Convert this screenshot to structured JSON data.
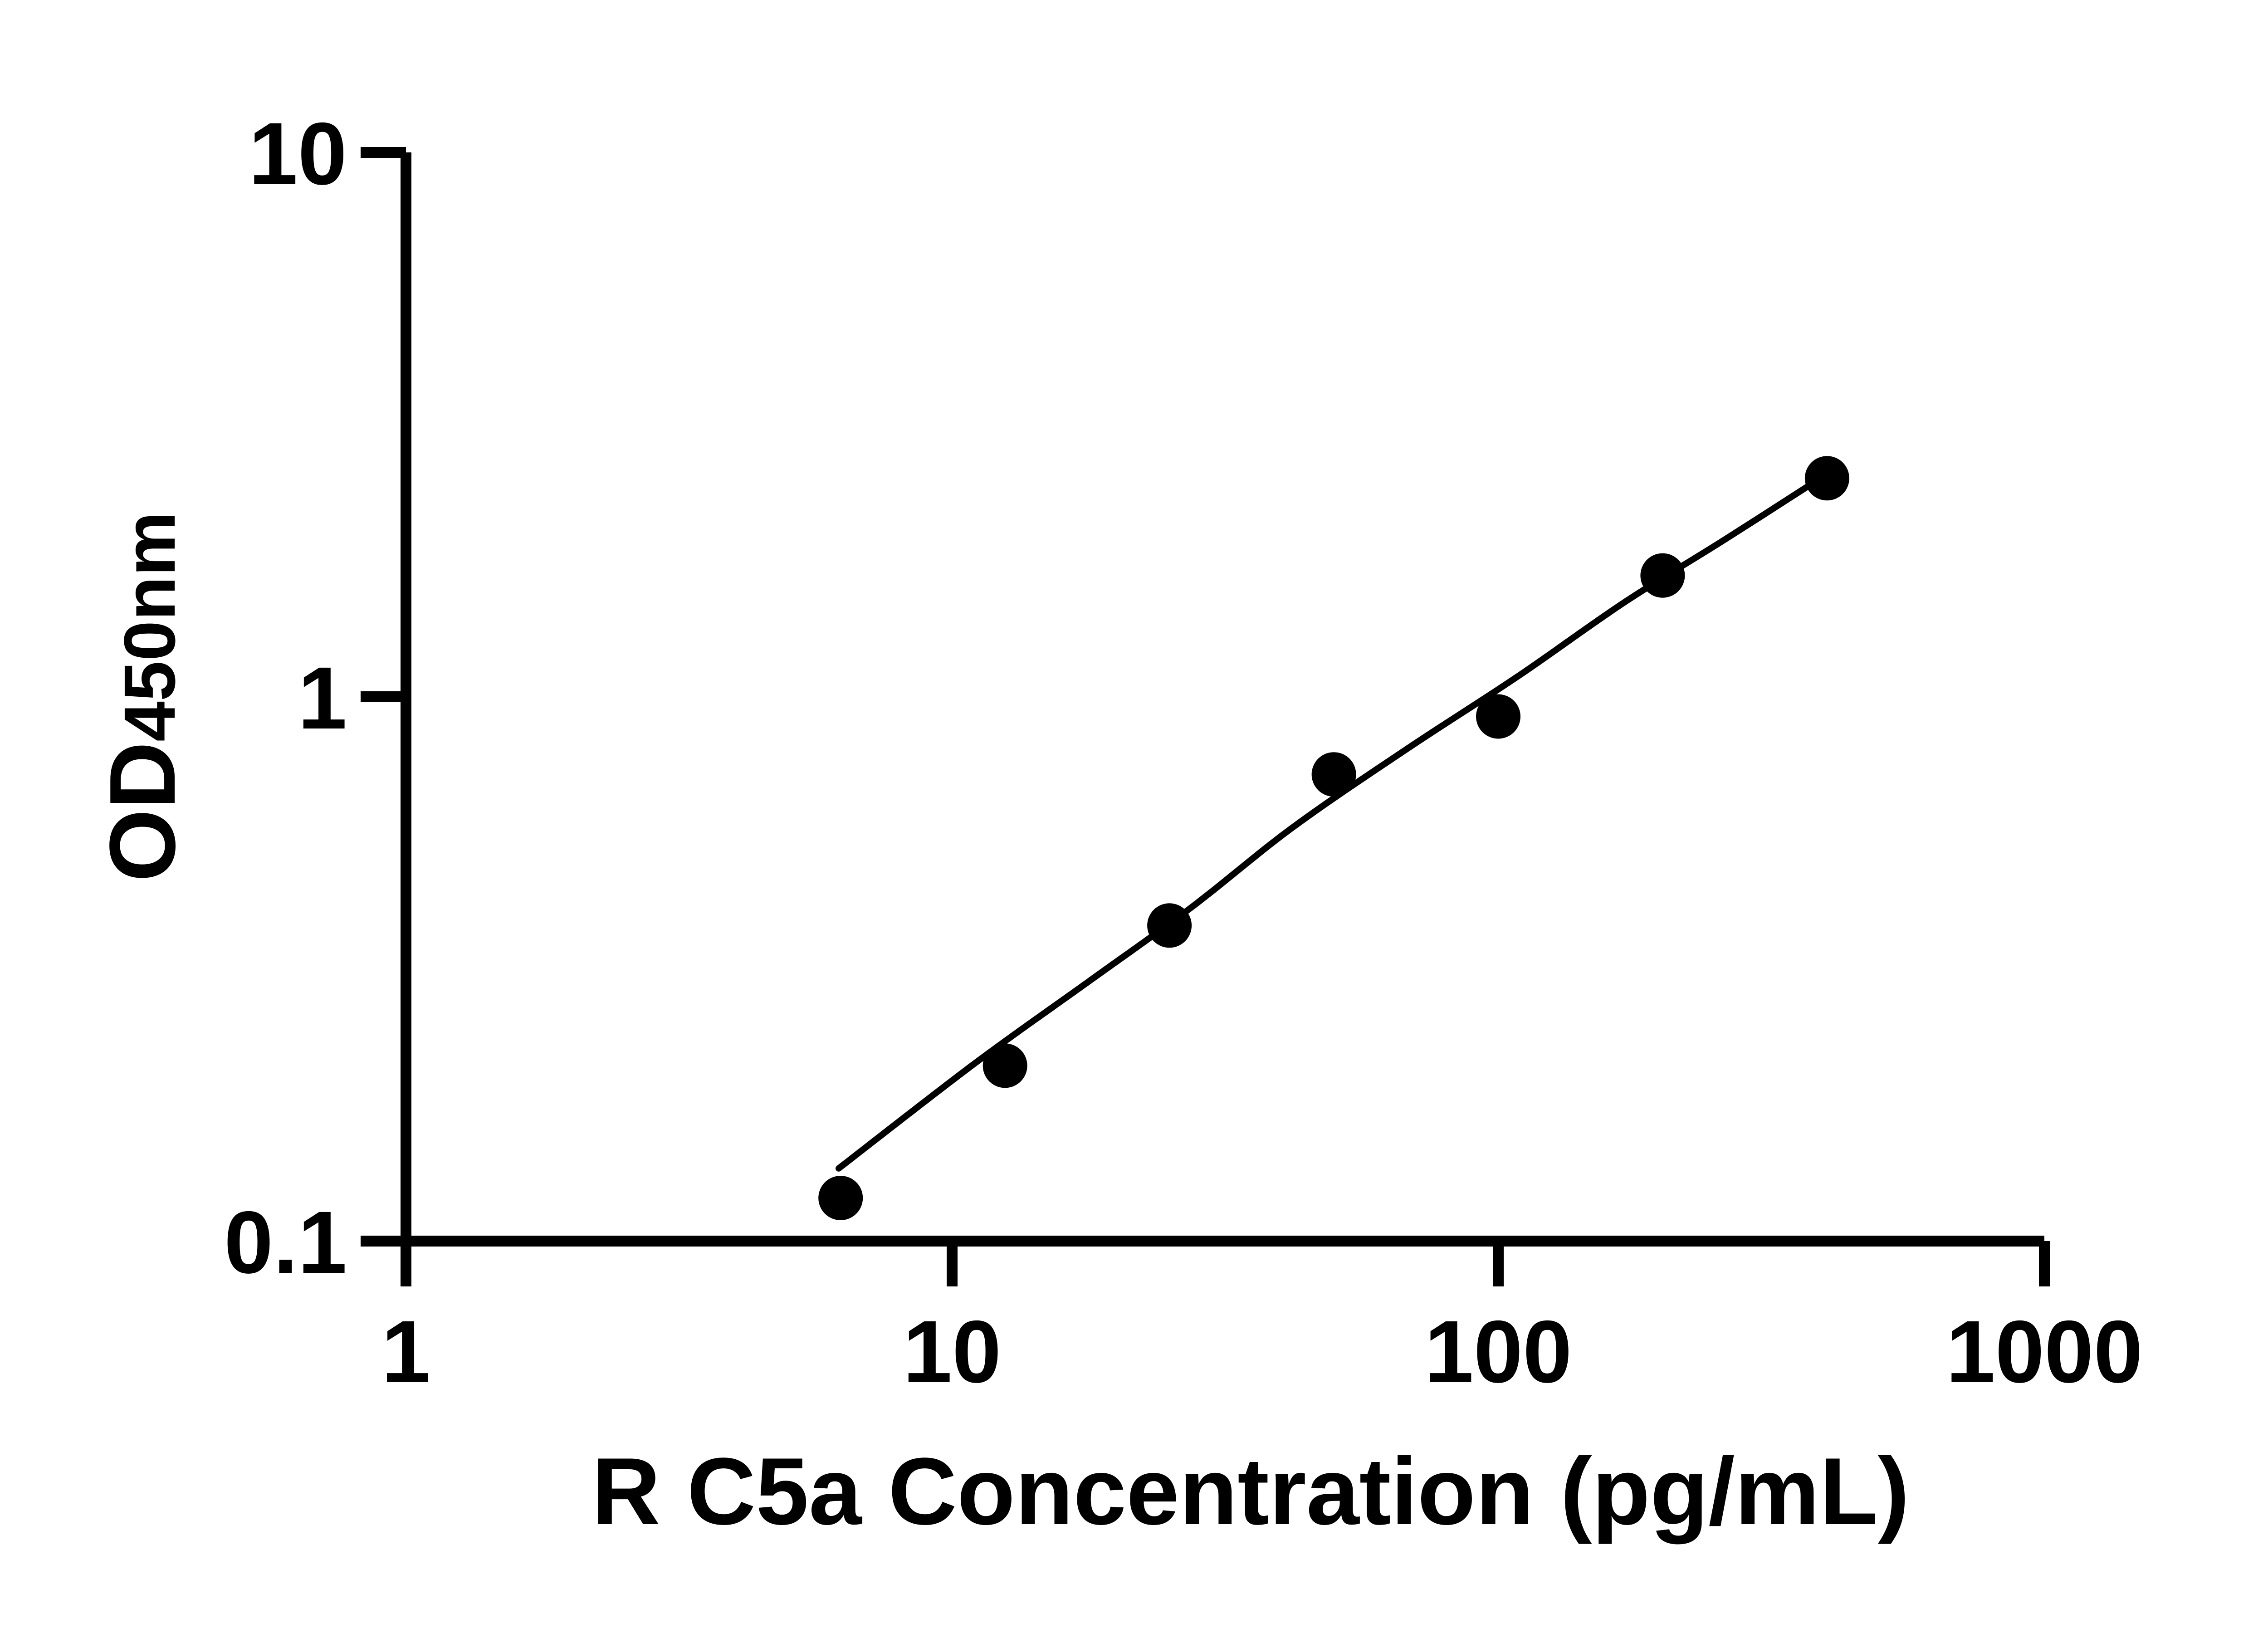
{
  "chart_data": {
    "type": "scatter",
    "title": "",
    "xlabel": "R C5a Concentration (pg/mL)",
    "ylabel": "OD450nm",
    "ylabel_main": "OD",
    "ylabel_sub": "450nm",
    "x_scale": "log",
    "y_scale": "log",
    "xlim": [
      1,
      1000
    ],
    "ylim": [
      0.1,
      10
    ],
    "grid": false,
    "legend": "none",
    "axis_color": "#000000",
    "background_color": "#ffffff",
    "marker_color": "#000000",
    "line_color": "#000000",
    "x_ticks": [
      {
        "value": 1,
        "label": "1"
      },
      {
        "value": 10,
        "label": "10"
      },
      {
        "value": 100,
        "label": "100"
      },
      {
        "value": 1000,
        "label": "1000"
      }
    ],
    "y_ticks": [
      {
        "value": 0.1,
        "label": "0.1"
      },
      {
        "value": 1,
        "label": "1"
      },
      {
        "value": 10,
        "label": "10"
      }
    ],
    "series": [
      {
        "name": "standard-points",
        "marker": "filled-circle",
        "color": "#000000",
        "x": [
          6.25,
          12.5,
          25,
          50,
          100,
          200,
          400
        ],
        "y": [
          0.12,
          0.21,
          0.38,
          0.72,
          0.92,
          1.67,
          2.52
        ]
      }
    ],
    "fit_curve": {
      "name": "fitted-line",
      "color": "#000000",
      "points": [
        [
          6.2,
          0.136
        ],
        [
          11.0,
          0.212
        ],
        [
          17.8,
          0.3
        ],
        [
          27.4,
          0.41
        ],
        [
          42.0,
          0.575
        ],
        [
          67.8,
          0.8
        ],
        [
          108.6,
          1.09
        ],
        [
          170.0,
          1.49
        ],
        [
          259.0,
          1.94
        ],
        [
          389.0,
          2.52
        ]
      ]
    }
  }
}
